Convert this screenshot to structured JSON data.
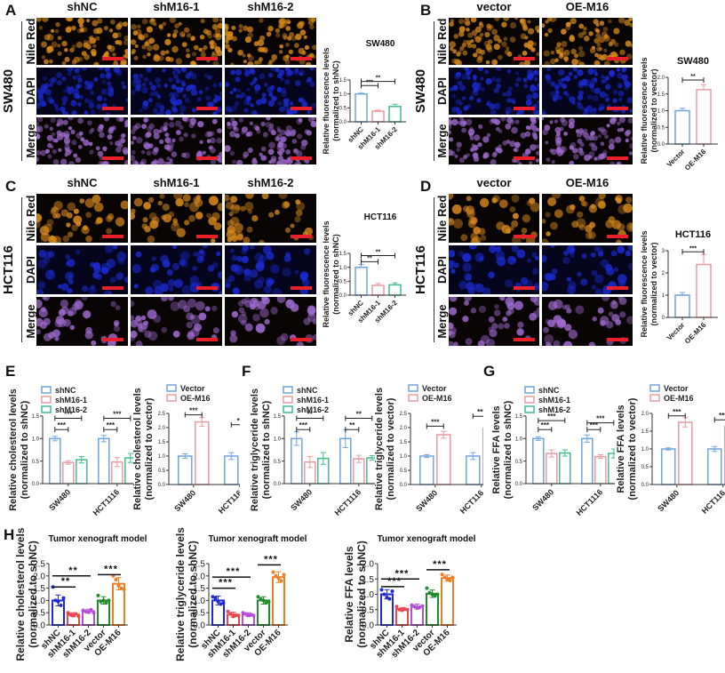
{
  "panels": {
    "A": {
      "letter": "A",
      "cell_line": "SW480",
      "columns": [
        "shNC",
        "shM16-1",
        "shM16-2"
      ],
      "rows": [
        "Nile Red",
        "DAPI",
        "Merge"
      ]
    },
    "B": {
      "letter": "B",
      "cell_line": "SW480",
      "columns": [
        "vector",
        "OE-M16"
      ],
      "rows": [
        "Nile Red",
        "DAPI",
        "Merge"
      ]
    },
    "C": {
      "letter": "C",
      "cell_line": "HCT116",
      "columns": [
        "shNC",
        "shM16-1",
        "shM16-2"
      ],
      "rows": [
        "Nile Red",
        "DAPI",
        "Merge"
      ]
    },
    "D": {
      "letter": "D",
      "cell_line": "HCT116",
      "columns": [
        "vector",
        "OE-M16"
      ],
      "rows": [
        "Nile Red",
        "DAPI",
        "Merge"
      ]
    },
    "E": {
      "letter": "E"
    },
    "F": {
      "letter": "F"
    },
    "G": {
      "letter": "G"
    },
    "H": {
      "letter": "H"
    }
  },
  "colors": {
    "blue": "#6fa3dc",
    "pink": "#e99aa0",
    "green": "#3fbf8a",
    "h_blue": "#1f2ad6",
    "h_red": "#e8474f",
    "h_purple": "#b54fd6",
    "h_green": "#1f8c2a",
    "h_orange": "#ef7d22",
    "nile": "#d98a1c",
    "dapi": "#1a2bd0",
    "merge": "#a06ad0",
    "scalebar": "#e8202a"
  },
  "chart_data": [
    {
      "id": "A",
      "type": "bar",
      "title": "SW480",
      "ylabel": "Relative fluorescence levels\n(normalized to shNC)",
      "categories": [
        "shNC",
        "shM16-1",
        "shM16-2"
      ],
      "values": [
        1.0,
        0.38,
        0.55
      ],
      "errors": [
        0.03,
        0.04,
        0.08
      ],
      "ylim": [
        0,
        1.5
      ],
      "yticks": [
        "0.0",
        "0.5",
        "1.0",
        "1.5"
      ],
      "colors": [
        "blue",
        "pink",
        "green"
      ],
      "sig": [
        {
          "from": 0,
          "to": 1,
          "label": "***",
          "level": 1.3
        },
        {
          "from": 0,
          "to": 2,
          "label": "**",
          "level": 1.45
        }
      ]
    },
    {
      "id": "B",
      "type": "bar",
      "title": "SW480",
      "ylabel": "Relative fluorescence levels\n(normalized to vector)",
      "categories": [
        "Vector",
        "OE-M16"
      ],
      "values": [
        1.0,
        1.63
      ],
      "errors": [
        0.07,
        0.15
      ],
      "ylim": [
        0,
        2.0
      ],
      "yticks": [
        "0.0",
        "0.5",
        "1.0",
        "1.5",
        "2.0"
      ],
      "colors": [
        "blue",
        "pink"
      ],
      "sig": [
        {
          "from": 0,
          "to": 1,
          "label": "**",
          "level": 1.92
        }
      ]
    },
    {
      "id": "C",
      "type": "bar",
      "title": "HCT116",
      "ylabel": "Relative fluorescence levels\n(normalized to shNC)",
      "categories": [
        "shNC",
        "shM16-1",
        "shM16-2"
      ],
      "values": [
        1.0,
        0.35,
        0.37
      ],
      "errors": [
        0.1,
        0.07,
        0.07
      ],
      "ylim": [
        0,
        1.5
      ],
      "yticks": [
        "0.0",
        "0.5",
        "1.0",
        "1.5"
      ],
      "colors": [
        "blue",
        "pink",
        "green"
      ],
      "sig": [
        {
          "from": 0,
          "to": 1,
          "label": "**",
          "level": 1.2
        },
        {
          "from": 0,
          "to": 2,
          "label": "**",
          "level": 1.42
        }
      ]
    },
    {
      "id": "D",
      "type": "bar",
      "title": "HCT116",
      "ylabel": "Relative fluorescence levels\n(normalized to vector)",
      "categories": [
        "Vector",
        "OE-M16"
      ],
      "values": [
        1.0,
        2.38
      ],
      "errors": [
        0.12,
        0.45
      ],
      "ylim": [
        0,
        3
      ],
      "yticks": [
        "0",
        "1",
        "2",
        "3"
      ],
      "colors": [
        "blue",
        "pink"
      ],
      "sig": [
        {
          "from": 0,
          "to": 1,
          "label": "***",
          "level": 2.95
        }
      ]
    },
    {
      "id": "E1",
      "type": "bar",
      "ylabel": "Relative cholesterol levels\n(normalized to shNC)",
      "categories": [
        "SW480",
        "HCT1116"
      ],
      "legend": [
        "shNC",
        "shM16-1",
        "shM16-2"
      ],
      "series": [
        {
          "name": "shNC",
          "values": [
            1.0,
            1.0
          ],
          "errors": [
            0.05,
            0.07
          ]
        },
        {
          "name": "shM16-1",
          "values": [
            0.47,
            0.48
          ],
          "errors": [
            0.04,
            0.1
          ]
        },
        {
          "name": "shM16-2",
          "values": [
            0.53,
            0.57
          ],
          "errors": [
            0.07,
            0.1
          ]
        }
      ],
      "ylim": [
        0,
        1.5
      ],
      "yticks": [
        "0.0",
        "0.5",
        "1.0",
        "1.5"
      ],
      "colors": [
        "blue",
        "pink",
        "green"
      ],
      "sig": [
        {
          "g": 0,
          "from": 0,
          "to": 1,
          "label": "***",
          "level": 1.2
        },
        {
          "g": 0,
          "from": 0,
          "to": 2,
          "label": "***",
          "level": 1.45
        },
        {
          "g": 1,
          "from": 0,
          "to": 1,
          "label": "***",
          "level": 1.2
        },
        {
          "g": 1,
          "from": 0,
          "to": 2,
          "label": "***",
          "level": 1.45
        }
      ]
    },
    {
      "id": "E2",
      "type": "bar",
      "ylabel": "Relative cholesterol levels\n(normalized to vector)",
      "categories": [
        "SW480",
        "HCT116"
      ],
      "legend": [
        "Vector",
        "OE-M16"
      ],
      "series": [
        {
          "name": "Vector",
          "values": [
            1.0,
            1.0
          ],
          "errors": [
            0.08,
            0.12
          ]
        },
        {
          "name": "OE-M16",
          "values": [
            2.2,
            1.87
          ],
          "errors": [
            0.15,
            0.1
          ]
        }
      ],
      "ylim": [
        0,
        2.5
      ],
      "yticks": [
        "0.0",
        "0.5",
        "1.0",
        "1.5",
        "2.0",
        "2.5"
      ],
      "colors": [
        "blue",
        "pink"
      ],
      "sig": [
        {
          "g": 0,
          "from": 0,
          "to": 1,
          "label": "***",
          "level": 2.45
        },
        {
          "g": 1,
          "from": 0,
          "to": 1,
          "label": "**",
          "level": 2.1
        }
      ]
    },
    {
      "id": "F1",
      "type": "bar",
      "ylabel": "Relative triglyceride levels\n(normalized to shNC)",
      "categories": [
        "SW480",
        "HCT1116"
      ],
      "legend": [
        "shNC",
        "shM16-1",
        "shM16-2"
      ],
      "series": [
        {
          "name": "shNC",
          "values": [
            1.0,
            1.0
          ],
          "errors": [
            0.15,
            0.2
          ]
        },
        {
          "name": "shM16-1",
          "values": [
            0.48,
            0.55
          ],
          "errors": [
            0.12,
            0.08
          ]
        },
        {
          "name": "shM16-2",
          "values": [
            0.56,
            0.57
          ],
          "errors": [
            0.13,
            0.05
          ]
        }
      ],
      "ylim": [
        0,
        1.5
      ],
      "yticks": [
        "0.0",
        "0.5",
        "1.0",
        "1.5"
      ],
      "colors": [
        "blue",
        "pink",
        "green"
      ],
      "sig": [
        {
          "g": 0,
          "from": 0,
          "to": 1,
          "label": "***",
          "level": 1.2
        },
        {
          "g": 0,
          "from": 0,
          "to": 2,
          "label": "**",
          "level": 1.45
        },
        {
          "g": 1,
          "from": 0,
          "to": 1,
          "label": "**",
          "level": 1.2
        },
        {
          "g": 1,
          "from": 0,
          "to": 2,
          "label": "**",
          "level": 1.45
        }
      ]
    },
    {
      "id": "F2",
      "type": "bar",
      "ylabel": "Relative triglyceride levels\n(normalized to vector)",
      "categories": [
        "SW480",
        "HCT116"
      ],
      "legend": [
        "Vector",
        "OE-M16"
      ],
      "series": [
        {
          "name": "Vector",
          "values": [
            1.0,
            1.0
          ],
          "errors": [
            0.05,
            0.12
          ]
        },
        {
          "name": "OE-M16",
          "values": [
            1.75,
            1.98
          ],
          "errors": [
            0.12,
            0.27
          ]
        }
      ],
      "ylim": [
        0,
        2.5
      ],
      "yticks": [
        "0.0",
        "0.5",
        "1.0",
        "1.5",
        "2.0",
        "2.5"
      ],
      "colors": [
        "blue",
        "pink"
      ],
      "sig": [
        {
          "g": 0,
          "from": 0,
          "to": 1,
          "label": "***",
          "level": 2.05
        },
        {
          "g": 1,
          "from": 0,
          "to": 1,
          "label": "***",
          "level": 2.4
        }
      ]
    },
    {
      "id": "G1",
      "type": "bar",
      "ylabel": "Relative FFA levels\n(normalized to shNC)",
      "categories": [
        "SW480",
        "HCT1116"
      ],
      "legend": [
        "shNC",
        "shM16-1",
        "shM16-2"
      ],
      "series": [
        {
          "name": "shNC",
          "values": [
            1.0,
            1.0
          ],
          "errors": [
            0.04,
            0.08
          ]
        },
        {
          "name": "shM16-1",
          "values": [
            0.67,
            0.6
          ],
          "errors": [
            0.08,
            0.04
          ]
        },
        {
          "name": "shM16-2",
          "values": [
            0.68,
            0.67
          ],
          "errors": [
            0.07,
            0.1
          ]
        }
      ],
      "ylim": [
        0,
        1.5
      ],
      "yticks": [
        "0.0",
        "0.5",
        "1.0",
        "1.5"
      ],
      "colors": [
        "blue",
        "pink",
        "green"
      ],
      "sig": [
        {
          "g": 0,
          "from": 0,
          "to": 1,
          "label": "***",
          "level": 1.2
        },
        {
          "g": 0,
          "from": 0,
          "to": 2,
          "label": "***",
          "level": 1.4
        },
        {
          "g": 1,
          "from": 0,
          "to": 1,
          "label": "***",
          "level": 1.2
        },
        {
          "g": 1,
          "from": 0,
          "to": 2,
          "label": "***",
          "level": 1.35
        }
      ]
    },
    {
      "id": "G2",
      "type": "bar",
      "ylabel": "Relative FFA levels\n(normalized to vector)",
      "categories": [
        "SW480",
        "HCT116"
      ],
      "legend": [
        "Vector",
        "OE-M16"
      ],
      "series": [
        {
          "name": "Vector",
          "values": [
            1.0,
            1.0
          ],
          "errors": [
            0.03,
            0.07
          ]
        },
        {
          "name": "OE-M16",
          "values": [
            1.75,
            1.63
          ],
          "errors": [
            0.13,
            0.06
          ]
        }
      ],
      "ylim": [
        0,
        2.0
      ],
      "yticks": [
        "0.0",
        "0.5",
        "1.0",
        "1.5",
        "2.0"
      ],
      "colors": [
        "blue",
        "pink"
      ],
      "sig": [
        {
          "g": 0,
          "from": 0,
          "to": 1,
          "label": "***",
          "level": 1.93
        },
        {
          "g": 1,
          "from": 0,
          "to": 1,
          "label": "***",
          "level": 1.82
        }
      ]
    },
    {
      "id": "H1",
      "type": "bar",
      "title": "Tumor xenograft model",
      "ylabel": "Relative cholesterol levels\n(normalized to shNC)",
      "categories": [
        "shNC",
        "shM16-1",
        "shM16-2",
        "vector",
        "OE-M16"
      ],
      "values": [
        1.0,
        0.42,
        0.56,
        1.0,
        1.68
      ],
      "errors": [
        0.22,
        0.08,
        0.08,
        0.15,
        0.25
      ],
      "points": [
        [
          1.55,
          1.0,
          0.95,
          0.8,
          1.1
        ],
        [
          0.5,
          0.42,
          0.38,
          0.45,
          0.35
        ],
        [
          0.6,
          0.55,
          0.52,
          0.62,
          0.5
        ],
        [
          1.2,
          0.95,
          1.0,
          0.9,
          1.0
        ],
        [
          2.0,
          1.85,
          1.6,
          1.5,
          1.45
        ]
      ],
      "ylim": [
        0,
        2.5
      ],
      "yticks": [
        "0.0",
        "0.5",
        "1.0",
        "1.5",
        "2.0",
        "2.5"
      ],
      "colors": [
        "h_blue",
        "h_red",
        "h_purple",
        "h_green",
        "h_orange"
      ],
      "sig": [
        {
          "from": 0,
          "to": 1,
          "label": "**",
          "level": 1.55
        },
        {
          "from": 0,
          "to": 2,
          "label": "**",
          "level": 2.0
        },
        {
          "from": 3,
          "to": 4,
          "label": "***",
          "level": 2.05
        }
      ]
    },
    {
      "id": "H2",
      "type": "bar",
      "title": "Tumor xenograft model",
      "ylabel": "Relative triglyceride levels\n(normalized to shNC)",
      "categories": [
        "shNC",
        "shM16-1",
        "shM16-2",
        "vector",
        "OE-M16"
      ],
      "values": [
        1.0,
        0.42,
        0.42,
        1.0,
        1.95
      ],
      "errors": [
        0.18,
        0.1,
        0.08,
        0.15,
        0.22
      ],
      "points": [
        [
          1.15,
          1.1,
          0.95,
          0.85,
          0.9
        ],
        [
          0.55,
          0.45,
          0.35,
          0.4,
          0.38
        ],
        [
          0.5,
          0.45,
          0.4,
          0.42,
          0.38
        ],
        [
          1.15,
          1.05,
          1.0,
          0.9,
          0.95
        ],
        [
          2.15,
          2.0,
          1.9,
          1.8,
          2.05
        ]
      ],
      "ylim": [
        0,
        2.5
      ],
      "yticks": [
        "0.0",
        "0.5",
        "1.0",
        "1.5",
        "2.0",
        "2.5"
      ],
      "colors": [
        "h_blue",
        "h_red",
        "h_purple",
        "h_green",
        "h_orange"
      ],
      "sig": [
        {
          "from": 0,
          "to": 1,
          "label": "***",
          "level": 1.5
        },
        {
          "from": 0,
          "to": 2,
          "label": "***",
          "level": 1.95
        },
        {
          "from": 3,
          "to": 4,
          "label": "***",
          "level": 2.45
        }
      ]
    },
    {
      "id": "H3",
      "type": "bar",
      "title": "Tumor xenograft model",
      "ylabel": "Relative FFA levels\n(normalized to shNC)",
      "categories": [
        "shNC",
        "shM16-1",
        "shM16-2",
        "vector",
        "OE-M16"
      ],
      "values": [
        1.0,
        0.52,
        0.6,
        1.02,
        1.53
      ],
      "errors": [
        0.15,
        0.05,
        0.08,
        0.12,
        0.1
      ],
      "points": [
        [
          1.15,
          1.0,
          0.9,
          0.85,
          1.1
        ],
        [
          0.6,
          0.5,
          0.48,
          0.52,
          0.5
        ],
        [
          0.65,
          0.6,
          0.55,
          0.58,
          0.62
        ],
        [
          1.2,
          1.05,
          1.0,
          0.95,
          1.0
        ],
        [
          1.65,
          1.55,
          1.5,
          1.45,
          1.55
        ]
      ],
      "ylim": [
        0,
        2.0
      ],
      "yticks": [
        "0.0",
        "0.5",
        "1.0",
        "1.5",
        "2.0"
      ],
      "colors": [
        "h_blue",
        "h_red",
        "h_purple",
        "h_green",
        "h_orange"
      ],
      "sig": [
        {
          "from": 0,
          "to": 1,
          "label": "***",
          "level": 1.25
        },
        {
          "from": 0,
          "to": 2,
          "label": "***",
          "level": 1.5
        },
        {
          "from": 3,
          "to": 4,
          "label": "***",
          "level": 1.8
        }
      ]
    }
  ]
}
